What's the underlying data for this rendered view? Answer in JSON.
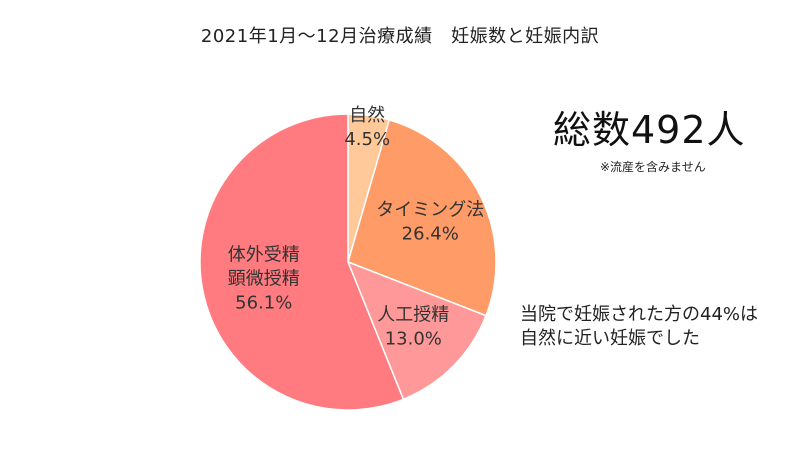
{
  "chart_data": {
    "type": "pie",
    "title": "2021年1月～12月治療成績　妊娠数と妊娠内訳",
    "slices": [
      {
        "label": [
          "自然"
        ],
        "value": 4.5,
        "value_label": "4.5%",
        "color": "#FFC999"
      },
      {
        "label": [
          "タイミング法"
        ],
        "value": 26.4,
        "value_label": "26.4%",
        "color": "#FF9B66"
      },
      {
        "label": [
          "人工授精"
        ],
        "value": 13.0,
        "value_label": "13.0%",
        "color": "#FF9999"
      },
      {
        "label": [
          "体外受精",
          "顕微授精"
        ],
        "value": 56.1,
        "value_label": "56.1%",
        "color": "#FF7B7F"
      }
    ],
    "start": "12 o'clock",
    "direction": "clockwise"
  },
  "summary": {
    "total": "総数492人",
    "total_note": "※流産を含みません",
    "note_lines": [
      "当院で妊娠された方の44%は",
      "自然に近い妊娠でした"
    ]
  }
}
